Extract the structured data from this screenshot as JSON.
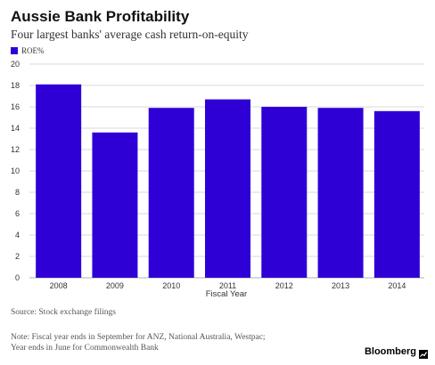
{
  "title": "Aussie Bank Profitability",
  "subtitle": "Four largest banks' average cash return-on-equity",
  "source": "Source: Stock exchange filings",
  "note_lines": [
    "Note: Fiscal year ends in September for ANZ, National Australia, Westpac;",
    "Year ends in June for Commonwealth Bank"
  ],
  "brand": "Bloomberg",
  "brand_icon": "chart-arrow-icon",
  "colors": {
    "bar": "#2E00D6",
    "grid": "#cccccc",
    "axis_text": "#333333"
  },
  "chart_data": {
    "type": "bar",
    "categories": [
      "2008",
      "2009",
      "2010",
      "2011",
      "2012",
      "2013",
      "2014"
    ],
    "series": [
      {
        "name": "ROE%",
        "values": [
          18.1,
          13.6,
          15.9,
          16.7,
          16.0,
          15.9,
          15.6
        ]
      }
    ],
    "title": "Aussie Bank Profitability",
    "subtitle": "Four largest banks' average cash return-on-equity",
    "xlabel": "Fiscal Year",
    "ylabel": "",
    "ylim": [
      0,
      20
    ],
    "yticks": [
      0,
      2,
      4,
      6,
      8,
      10,
      12,
      14,
      16,
      18,
      20
    ],
    "grid": true,
    "legend": "top-left"
  }
}
